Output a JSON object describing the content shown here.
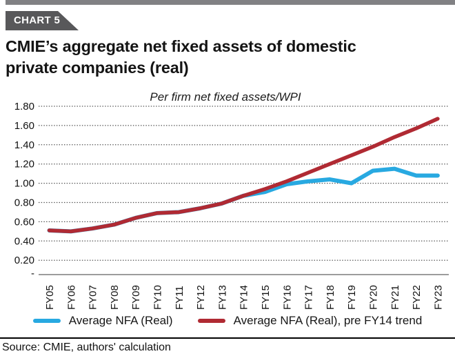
{
  "header": {
    "badge": "CHART 5",
    "title_line1": "CMIE’s aggregate net fixed assets of domestic",
    "title_line2": "private companies (real)"
  },
  "chart_data": {
    "type": "line",
    "title": "Per firm net fixed assets/WPI",
    "categories": [
      "FY05",
      "FY06",
      "FY07",
      "FY08",
      "FY09",
      "FY10",
      "FY11",
      "FY12",
      "FY13",
      "FY14",
      "FY15",
      "FY16",
      "FY17",
      "FY18",
      "FY19",
      "FY20",
      "FY21",
      "FY22",
      "FY23"
    ],
    "series": [
      {
        "name": "Average NFA (Real)",
        "color": "#28a9e1",
        "values": [
          0.51,
          0.5,
          0.53,
          0.57,
          0.64,
          0.69,
          0.7,
          0.74,
          0.79,
          0.87,
          0.91,
          0.99,
          1.02,
          1.04,
          1.0,
          1.13,
          1.15,
          1.08,
          1.08
        ]
      },
      {
        "name": "Average NFA (Real), pre FY14 trend",
        "color": "#b02a33",
        "values": [
          0.51,
          0.5,
          0.53,
          0.57,
          0.64,
          0.69,
          0.7,
          0.74,
          0.79,
          0.87,
          0.94,
          1.02,
          1.11,
          1.2,
          1.29,
          1.38,
          1.48,
          1.57,
          1.67
        ]
      }
    ],
    "ylim": [
      0,
      1.8
    ],
    "ytick_step": 0.2,
    "yticks": [
      {
        "label": "1.80",
        "value": 1.8
      },
      {
        "label": "1.60",
        "value": 1.6
      },
      {
        "label": "1.40",
        "value": 1.4
      },
      {
        "label": "1.20",
        "value": 1.2
      },
      {
        "label": "1.00",
        "value": 1.0
      },
      {
        "label": "0.80",
        "value": 0.8
      },
      {
        "label": "0.60",
        "value": 0.6
      },
      {
        "label": "0.40",
        "value": 0.4
      },
      {
        "label": "0.20",
        "value": 0.2
      },
      {
        "label": "-",
        "value": 0
      }
    ],
    "grid": "dotted-horizontal",
    "legend_position": "bottom",
    "x_tick_rotation": -90
  },
  "footer": {
    "source": "Source: CMIE, authors' calculation"
  },
  "colors": {
    "topbar": "#818184",
    "badge_bg": "#58585a",
    "gridline": "#4d4d4d",
    "axis": "#7b7b7b"
  }
}
